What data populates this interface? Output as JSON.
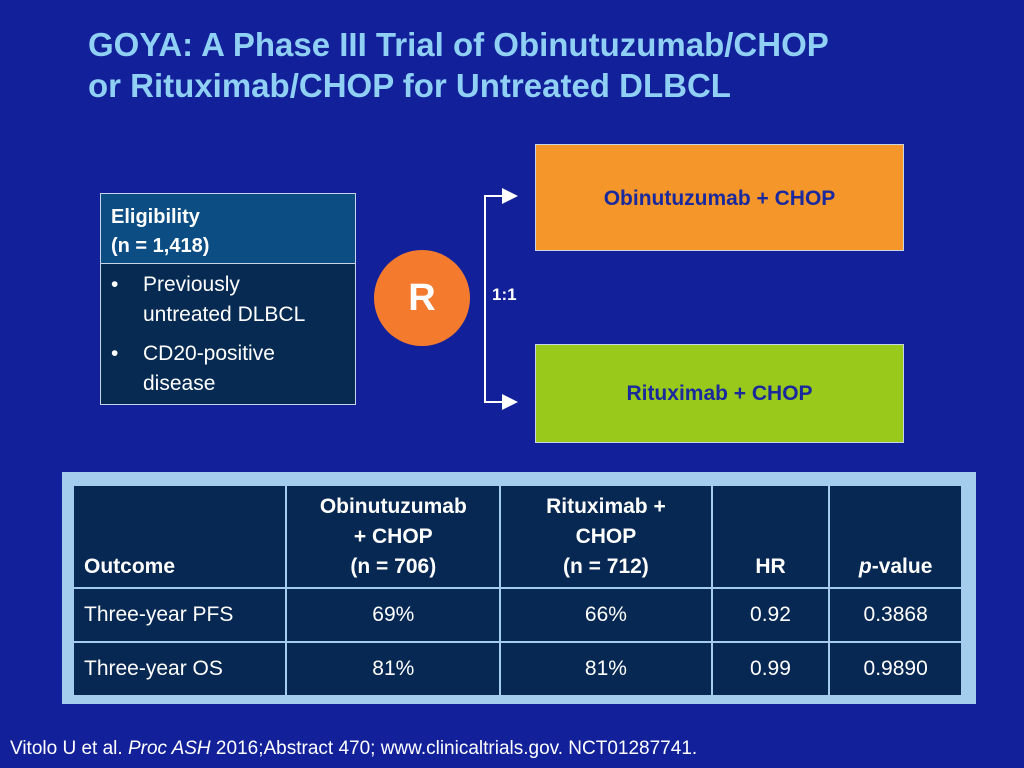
{
  "title": {
    "line1": "GOYA: A Phase III Trial of Obinutuzumab/CHOP",
    "line2": "or Rituximab/CHOP for Untreated DLBCL"
  },
  "eligibility": {
    "heading_line1": "Eligibility",
    "heading_line2": "(n = 1,418)",
    "bullet_char": "•",
    "criteria": [
      {
        "line1": "Previously",
        "line2": "untreated DLBCL"
      },
      {
        "line1": "CD20-positive",
        "line2": "disease"
      }
    ]
  },
  "randomization": {
    "label": "R",
    "ratio": "1:1"
  },
  "arms": {
    "obinutuzumab": "Obinutuzumab + CHOP",
    "rituximab": "Rituximab + CHOP"
  },
  "results_table": {
    "headers": [
      {
        "lines": [
          "Outcome"
        ]
      },
      {
        "lines": [
          "Obinutuzumab",
          "+ CHOP",
          "(n = 706)"
        ]
      },
      {
        "lines": [
          "Rituximab +",
          "CHOP",
          "(n = 712)"
        ]
      },
      {
        "lines": [
          "HR"
        ]
      },
      {
        "italic_prefix": "p",
        "suffix": "-value"
      }
    ],
    "rows": [
      {
        "outcome": "Three-year PFS",
        "obinutuzumab": "69%",
        "rituximab": "66%",
        "hr": "0.92",
        "p_value": "0.3868"
      },
      {
        "outcome": "Three-year OS",
        "obinutuzumab": "81%",
        "rituximab": "81%",
        "hr": "0.99",
        "p_value": "0.9890"
      }
    ]
  },
  "footer": {
    "authors": "Vitolo U et al. ",
    "journal": "Proc ASH",
    "rest": " 2016;Abstract 470; www.clinicaltrials.gov. NCT01287741."
  },
  "colors": {
    "background": "#12219a",
    "title": "#8fd0f4",
    "randomization": "#f47b2e",
    "obinutuzumab_arm": "#f5962a",
    "rituximab_arm": "#99c91a"
  }
}
